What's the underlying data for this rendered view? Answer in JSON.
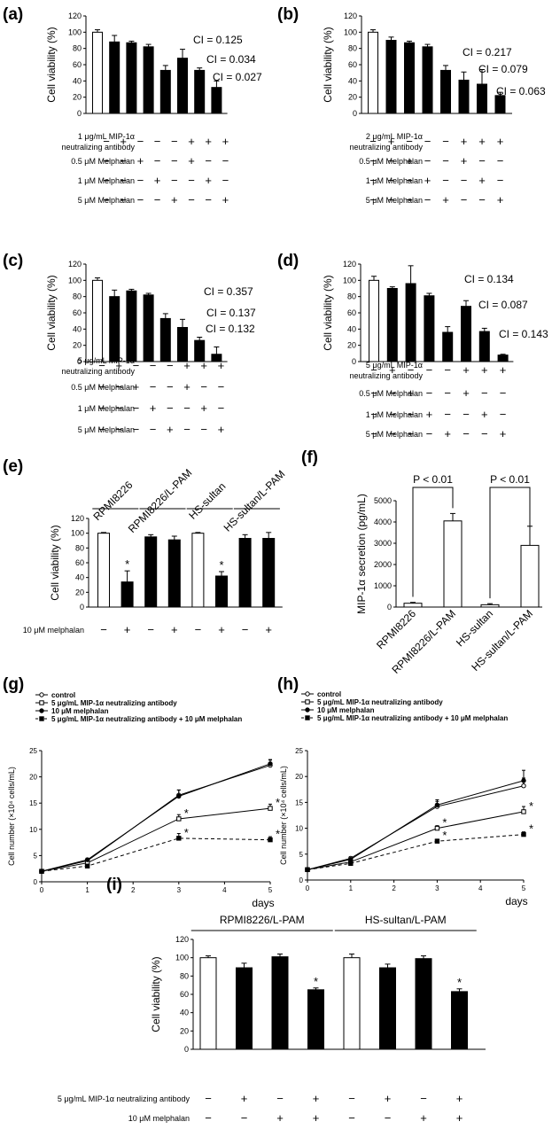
{
  "panels": [
    {
      "id": "a",
      "label": "(a)",
      "type": "bar",
      "ylabel": "Cell viability (%)",
      "yticks": [
        "0",
        "20",
        "40",
        "60",
        "80",
        "100",
        "120"
      ],
      "ylim": [
        0,
        120
      ],
      "values": [
        100,
        88,
        87,
        82,
        53,
        68,
        53,
        32
      ],
      "errors": [
        3,
        8,
        2,
        3,
        6,
        11,
        3,
        8
      ],
      "fills": [
        "white",
        "black",
        "black",
        "black",
        "black",
        "black",
        "black",
        "black"
      ],
      "ci": [
        {
          "bar": 5,
          "text": "CI = 0.125"
        },
        {
          "bar": 6,
          "text": "CI = 0.034"
        },
        {
          "bar": 7,
          "text": "CI = 0.027"
        }
      ],
      "rows": [
        {
          "label": [
            "1 μg/mL MIP-1α",
            "neutralizing antibody"
          ],
          "signs": [
            "−",
            "+",
            "−",
            "−",
            "−",
            "+",
            "+",
            "+"
          ]
        },
        {
          "label": [
            "0.5 μM Melphalan"
          ],
          "signs": [
            "−",
            "−",
            "+",
            "−",
            "−",
            "+",
            "−",
            "−"
          ]
        },
        {
          "label": [
            "1 μM Melphalan"
          ],
          "signs": [
            "−",
            "−",
            "−",
            "+",
            "−",
            "−",
            "+",
            "−"
          ]
        },
        {
          "label": [
            "5 μM Melphalan"
          ],
          "signs": [
            "−",
            "−",
            "−",
            "−",
            "+",
            "−",
            "−",
            "+"
          ]
        }
      ]
    },
    {
      "id": "b",
      "label": "(b)",
      "type": "bar",
      "ylabel": "Cell viability (%)",
      "yticks": [
        "0",
        "20",
        "40",
        "60",
        "80",
        "100",
        "120"
      ],
      "ylim": [
        0,
        120
      ],
      "values": [
        100,
        90,
        87,
        82,
        53,
        41,
        36,
        22
      ],
      "errors": [
        3,
        4,
        2,
        3,
        6,
        10,
        18,
        4
      ],
      "fills": [
        "white",
        "black",
        "black",
        "black",
        "black",
        "black",
        "black",
        "black"
      ],
      "ci": [
        {
          "bar": 5,
          "text": "CI = 0.217"
        },
        {
          "bar": 6,
          "text": "CI = 0.079"
        },
        {
          "bar": 7,
          "text": "CI = 0.063"
        }
      ],
      "rows": [
        {
          "label": [
            "2 μg/mL MIP-1α",
            "neutralizing antibody"
          ],
          "signs": [
            "−",
            "+",
            "−",
            "−",
            "−",
            "+",
            "+",
            "+"
          ]
        },
        {
          "label": [
            "0.5 μM Melphalan"
          ],
          "signs": [
            "−",
            "−",
            "+",
            "−",
            "−",
            "+",
            "−",
            "−"
          ]
        },
        {
          "label": [
            "1 μM Melphalan"
          ],
          "signs": [
            "−",
            "−",
            "−",
            "+",
            "−",
            "−",
            "+",
            "−"
          ]
        },
        {
          "label": [
            "5 μM Melphalan"
          ],
          "signs": [
            "−",
            "−",
            "−",
            "−",
            "+",
            "−",
            "−",
            "+"
          ]
        }
      ]
    },
    {
      "id": "c",
      "label": "(c)",
      "type": "bar",
      "ylabel": "Cell viability (%)",
      "yticks": [
        "0",
        "20",
        "40",
        "60",
        "80",
        "100",
        "120"
      ],
      "ylim": [
        0,
        120
      ],
      "values": [
        100,
        80,
        87,
        82,
        53,
        42,
        26,
        9
      ],
      "errors": [
        3,
        8,
        2,
        2,
        6,
        10,
        4,
        9
      ],
      "fills": [
        "white",
        "black",
        "black",
        "black",
        "black",
        "black",
        "black",
        "black"
      ],
      "ci": [
        {
          "bar": 5,
          "text": "CI = 0.357"
        },
        {
          "bar": 6,
          "text": "CI = 0.137"
        },
        {
          "bar": 7,
          "text": "CI = 0.132"
        }
      ],
      "rows": [
        {
          "label": [
            "5 μg/mL MIP-1α",
            "neutralizing antibody"
          ],
          "signs": [
            "−",
            "+",
            "−",
            "−",
            "−",
            "+",
            "+",
            "+"
          ]
        },
        {
          "label": [
            "0.5 μM Melphalan"
          ],
          "signs": [
            "−",
            "−",
            "+",
            "−",
            "−",
            "+",
            "−",
            "−"
          ]
        },
        {
          "label": [
            "1 μM Melphalan"
          ],
          "signs": [
            "−",
            "−",
            "−",
            "+",
            "−",
            "−",
            "+",
            "−"
          ]
        },
        {
          "label": [
            "5 μM Melphalan"
          ],
          "signs": [
            "−",
            "−",
            "−",
            "−",
            "+",
            "−",
            "−",
            "+"
          ]
        }
      ]
    },
    {
      "id": "d",
      "label": "(d)",
      "type": "bar",
      "ylabel": "Cell viability (%)",
      "yticks": [
        "0",
        "20",
        "40",
        "60",
        "80",
        "100",
        "120"
      ],
      "ylim": [
        0,
        120
      ],
      "values": [
        100,
        90,
        96,
        81,
        36,
        68,
        37,
        8
      ],
      "errors": [
        5,
        2,
        22,
        3,
        7,
        7,
        4,
        1
      ],
      "fills": [
        "white",
        "black",
        "black",
        "black",
        "black",
        "black",
        "black",
        "black"
      ],
      "ci": [
        {
          "bar": 5,
          "text": "CI = 0.134"
        },
        {
          "bar": 6,
          "text": "CI = 0.087"
        },
        {
          "bar": 7,
          "text": "CI = 0.143"
        }
      ],
      "rows": [
        {
          "label": [
            "5 μg/mL MIP-1α",
            "neutralizing antibody"
          ],
          "signs": [
            "−",
            "+",
            "−",
            "−",
            "−",
            "+",
            "+",
            "+"
          ]
        },
        {
          "label": [
            "0.5 μM Melphalan"
          ],
          "signs": [
            "−",
            "−",
            "+",
            "−",
            "−",
            "+",
            "−",
            "−"
          ]
        },
        {
          "label": [
            "1 μM Melphalan"
          ],
          "signs": [
            "−",
            "−",
            "−",
            "+",
            "−",
            "−",
            "+",
            "−"
          ]
        },
        {
          "label": [
            "5 μM Melphalan"
          ],
          "signs": [
            "−",
            "−",
            "−",
            "−",
            "+",
            "−",
            "−",
            "+"
          ]
        }
      ]
    },
    {
      "id": "e",
      "label": "(e)",
      "type": "bar",
      "ylabel": "Cell viability (%)",
      "yticks": [
        "0",
        "20",
        "40",
        "60",
        "80",
        "100",
        "120"
      ],
      "ylim": [
        0,
        120
      ],
      "groups": [
        "RPMI8226",
        "RPMI8226/L-PAM",
        "HS-sultan",
        "HS-sultan/L-PAM"
      ],
      "values": [
        100,
        34,
        95,
        91,
        100,
        42,
        93,
        93
      ],
      "errors": [
        1,
        15,
        3,
        5,
        1,
        6,
        5,
        8
      ],
      "fills": [
        "white",
        "black",
        "black",
        "black",
        "white",
        "black",
        "black",
        "black"
      ],
      "stars": [
        1,
        5
      ],
      "rows": [
        {
          "label": [
            "10 μM melphalan"
          ],
          "signs": [
            "−",
            "+",
            "−",
            "+",
            "−",
            "+",
            "−",
            "+"
          ]
        }
      ]
    },
    {
      "id": "f",
      "label": "(f)",
      "type": "bar",
      "ylabel": "MIP-1α secretion (pg/mL)",
      "yticks": [
        "0",
        "1000",
        "2000",
        "3000",
        "4000",
        "5000"
      ],
      "ylim": [
        0,
        5000
      ],
      "categories": [
        "RPMI8226",
        "RPMI8226/L-PAM",
        "HS-sultan",
        "HS-sultan/L-PAM"
      ],
      "values": [
        180,
        4050,
        110,
        2900
      ],
      "errors": [
        40,
        350,
        50,
        900
      ],
      "sig": [
        "P < 0.01",
        "P < 0.01"
      ]
    },
    {
      "id": "g",
      "label": "(g)",
      "type": "line",
      "ylabel": "Cell number (×10⁴ cells/mL)",
      "xlabel": "days",
      "yticks": [
        "0",
        "5",
        "10",
        "15",
        "20",
        "25"
      ],
      "xticks": [
        "0",
        "1",
        "2",
        "3",
        "4",
        "5"
      ],
      "xlim": [
        0,
        5
      ],
      "ylim": [
        0,
        25
      ],
      "legend": [
        "control",
        "5 μg/mL MIP-1α neutralizing antibody",
        "10 μM melphalan",
        "5 μg/mL MIP-1α neutralizing antibody + 10 μM melphalan"
      ],
      "series": [
        {
          "marker": "open-circle",
          "dash": false,
          "x": [
            0,
            1,
            3,
            5
          ],
          "y": [
            2,
            4,
            16.5,
            22.2
          ],
          "err": [
            0,
            0.3,
            1,
            1
          ]
        },
        {
          "marker": "open-square",
          "dash": false,
          "x": [
            0,
            1,
            3,
            5
          ],
          "y": [
            2,
            3.6,
            12,
            14
          ],
          "err": [
            0,
            0.3,
            0.8,
            0.8
          ]
        },
        {
          "marker": "filled-circle",
          "dash": false,
          "x": [
            0,
            1,
            3,
            5
          ],
          "y": [
            2,
            4.2,
            16.3,
            22.5
          ],
          "err": [
            0,
            0.3,
            1.2,
            0.8
          ]
        },
        {
          "marker": "filled-square",
          "dash": true,
          "x": [
            0,
            1,
            3,
            5
          ],
          "y": [
            2,
            3,
            8.3,
            8
          ],
          "err": [
            0,
            0.3,
            0.9,
            0.6
          ]
        }
      ],
      "stars": [
        {
          "x": 3,
          "y": 12
        },
        {
          "x": 3,
          "y": 8.3
        },
        {
          "x": 5,
          "y": 14
        },
        {
          "x": 5,
          "y": 8
        }
      ]
    },
    {
      "id": "h",
      "label": "(h)",
      "type": "line",
      "ylabel": "Cell number (×10⁴ cells/mL)",
      "xlabel": "days",
      "yticks": [
        "0",
        "5",
        "10",
        "15",
        "20",
        "25"
      ],
      "xticks": [
        "0",
        "1",
        "2",
        "3",
        "4",
        "5"
      ],
      "xlim": [
        0,
        5
      ],
      "ylim": [
        0,
        25
      ],
      "legend": [
        "control",
        "5 μg/mL MIP-1α neutralizing antibody",
        "10 μM melphalan",
        "5 μg/mL MIP-1α neutralizing antibody + 10 μM melphalan"
      ],
      "series": [
        {
          "marker": "open-circle",
          "dash": false,
          "x": [
            0,
            1,
            3,
            5
          ],
          "y": [
            2,
            4.2,
            14.2,
            18.2
          ],
          "err": [
            0,
            0.3,
            1,
            1.5
          ]
        },
        {
          "marker": "open-square",
          "dash": false,
          "x": [
            0,
            1,
            3,
            5
          ],
          "y": [
            2,
            3.5,
            10,
            13.2
          ],
          "err": [
            0,
            0.3,
            0.5,
            1
          ]
        },
        {
          "marker": "filled-circle",
          "dash": false,
          "x": [
            0,
            1,
            3,
            5
          ],
          "y": [
            2,
            4,
            14.5,
            19.2
          ],
          "err": [
            0,
            0.3,
            1,
            2
          ]
        },
        {
          "marker": "filled-square",
          "dash": true,
          "x": [
            0,
            1,
            3,
            5
          ],
          "y": [
            2,
            3.2,
            7.5,
            8.8
          ],
          "err": [
            0,
            0.3,
            0.4,
            0.5
          ]
        }
      ],
      "stars": [
        {
          "x": 3,
          "y": 10
        },
        {
          "x": 3,
          "y": 7.5
        },
        {
          "x": 5,
          "y": 13.2
        },
        {
          "x": 5,
          "y": 8.8
        }
      ]
    },
    {
      "id": "i",
      "label": "(i)",
      "type": "bar",
      "ylabel": "Cell viability (%)",
      "yticks": [
        "0",
        "20",
        "40",
        "60",
        "80",
        "100",
        "120"
      ],
      "ylim": [
        0,
        120
      ],
      "groups": [
        "RPMI8226/L-PAM",
        "HS-sultan/L-PAM"
      ],
      "values": [
        100,
        89,
        101,
        65,
        100,
        89,
        99,
        63
      ],
      "errors": [
        2,
        5,
        3,
        2,
        4,
        4,
        3,
        3
      ],
      "fills": [
        "white",
        "black",
        "black",
        "black",
        "white",
        "black",
        "black",
        "black"
      ],
      "stars": [
        3,
        7
      ],
      "rows": [
        {
          "label": [
            "5 μg/mL MIP-1α neutralizing antibody"
          ],
          "signs": [
            "−",
            "+",
            "−",
            "+",
            "−",
            "+",
            "−",
            "+"
          ]
        },
        {
          "label": [
            "10 μM melphalan"
          ],
          "signs": [
            "−",
            "−",
            "+",
            "+",
            "−",
            "−",
            "+",
            "+"
          ]
        }
      ]
    }
  ]
}
